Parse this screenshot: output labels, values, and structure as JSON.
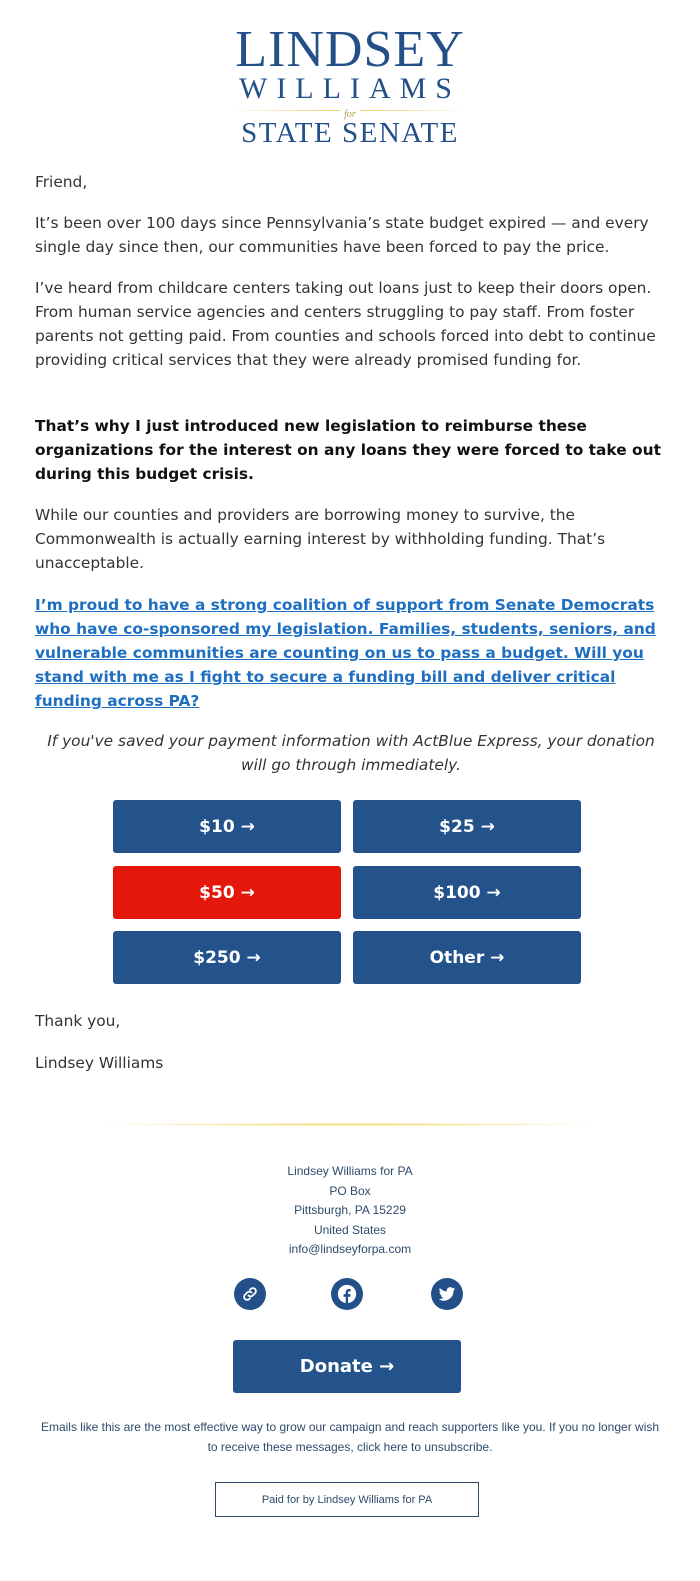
{
  "logo": {
    "line1": "LINDSEY",
    "line2": "WILLIAMS",
    "for": "for",
    "line3": "STATE SENATE"
  },
  "body": {
    "greeting": "Friend,",
    "p1": "It’s been over 100 days since Pennsylvania’s state budget expired — and every single day since then, our communities have been forced to pay the price.",
    "p2": "I’ve heard from childcare centers taking out loans just to keep their doors open. From human service agencies and centers struggling to pay staff. From foster parents not getting paid. From counties and schools forced into debt to continue providing critical services that they were already promised funding for.",
    "bold": "That’s why I just introduced new legislation to reimburse these organizations for the interest on any loans they were forced to take out during this budget crisis.",
    "p3": "While our counties and providers are borrowing money to survive, the Commonwealth is actually earning interest by withholding funding. That’s unacceptable.",
    "link": "I’m proud to have a strong coalition of support from Senate Democrats who have co-sponsored my legislation. Families, students, seniors, and vulnerable communities are counting on us to pass a budget. Will you stand with me as I fight to secure a funding bill and deliver critical funding across PA?",
    "express": "If you've saved your payment information with ActBlue Express, your donation will go through immediately.",
    "thanks": "Thank you,",
    "signature": "Lindsey Williams"
  },
  "buttons": [
    "$10 →",
    "$25 →",
    "$50 →",
    "$100 →",
    "$250 →",
    "Other →"
  ],
  "colors": {
    "primary": "#24538c",
    "highlight": "#e3170a",
    "gold": "#f1d35a"
  },
  "footer": {
    "address": [
      "Lindsey Williams for PA",
      "PO Box",
      "Pittsburgh, PA 15229",
      "United States",
      "info@lindseyforpa.com"
    ],
    "social": [
      "link-icon",
      "facebook-icon",
      "twitter-icon"
    ],
    "donate": "Donate →",
    "disclaimer": "Emails like this are the most effective way to grow our campaign and reach supporters like you. If you no longer wish to receive these messages, click here to unsubscribe.",
    "paid_for": "Paid for by Lindsey Williams for PA"
  }
}
